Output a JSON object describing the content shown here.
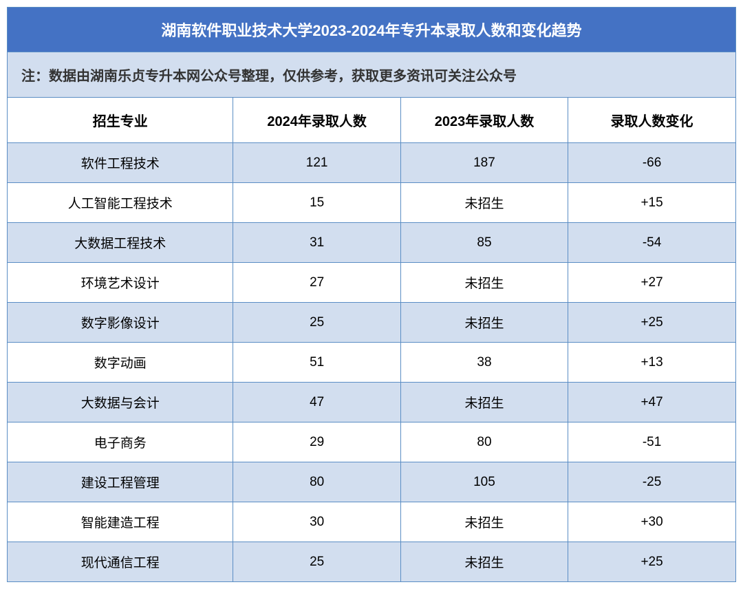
{
  "title": "湖南软件职业技术大学2023-2024年专升本录取人数和变化趋势",
  "note": "注：数据由湖南乐贞专升本网公众号整理，仅供参考，获取更多资讯可关注公众号",
  "table": {
    "type": "table",
    "columns": [
      "招生专业",
      "2024年录取人数",
      "2023年录取人数",
      "录取人数变化"
    ],
    "rows": [
      [
        "软件工程技术",
        "121",
        "187",
        "-66"
      ],
      [
        "人工智能工程技术",
        "15",
        "未招生",
        "+15"
      ],
      [
        "大数据工程技术",
        "31",
        "85",
        "-54"
      ],
      [
        "环境艺术设计",
        "27",
        "未招生",
        "+27"
      ],
      [
        "数字影像设计",
        "25",
        "未招生",
        "+25"
      ],
      [
        "数字动画",
        "51",
        "38",
        "+13"
      ],
      [
        "大数据与会计",
        "47",
        "未招生",
        "+47"
      ],
      [
        "电子商务",
        "29",
        "80",
        "-51"
      ],
      [
        "建设工程管理",
        "80",
        "105",
        "-25"
      ],
      [
        "智能建造工程",
        "30",
        "未招生",
        "+30"
      ],
      [
        "现代通信工程",
        "25",
        "未招生",
        "+25"
      ]
    ],
    "colors": {
      "header_bg": "#4472c4",
      "header_text": "#ffffff",
      "note_bg": "#d2deef",
      "row_alt_bg": "#d2deef",
      "row_bg": "#ffffff",
      "border": "#5a8dc4",
      "text": "#000000"
    },
    "font": {
      "title_size": 22,
      "note_size": 20,
      "header_size": 20,
      "cell_size": 19,
      "weight_bold": "bold"
    },
    "column_widths": [
      "31%",
      "23%",
      "23%",
      "23%"
    ]
  }
}
